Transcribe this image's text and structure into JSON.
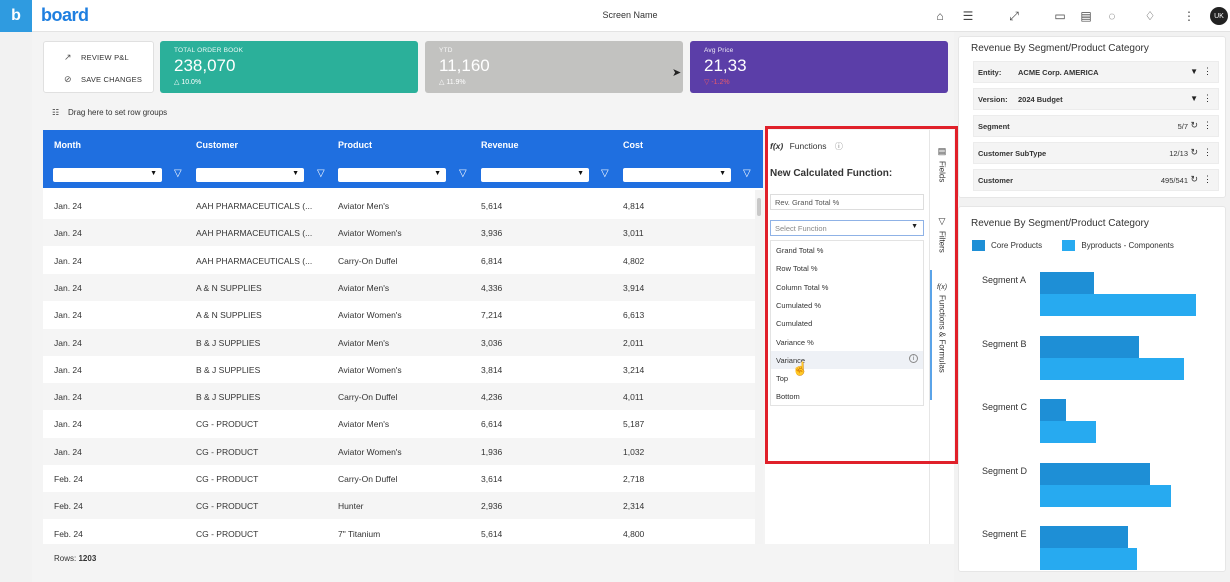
{
  "topbar": {
    "brand_letter": "b",
    "brand_name": "board",
    "screen_name": "Screen Name",
    "avatar": "UK"
  },
  "actions": {
    "review": "REVIEW P&L",
    "save": "SAVE CHANGES"
  },
  "kpis": [
    {
      "label": "TOTAL ORDER BOOK",
      "value": "238,070",
      "variance": "10.0%",
      "color": "#2bb09a"
    },
    {
      "label": "YTD",
      "value": "11,160",
      "variance": "11.9%",
      "color": "#c2c2c0"
    },
    {
      "label": "Avg Price",
      "value": "21,33",
      "variance": "-1.2%",
      "color": "#5b3ea8"
    }
  ],
  "drag_hint": "Drag here to set row groups",
  "grid": {
    "columns": [
      "Month",
      "Customer",
      "Product",
      "Revenue",
      "Cost"
    ],
    "rows": [
      [
        "Jan. 24",
        "AAH PHARMACEUTICALS (...",
        "Aviator Men's",
        "5,614",
        "4,814"
      ],
      [
        "Jan. 24",
        "AAH PHARMACEUTICALS (...",
        "Aviator Women's",
        "3,936",
        "3,011"
      ],
      [
        "Jan. 24",
        "AAH PHARMACEUTICALS (...",
        "Carry-On Duffel",
        "6,814",
        "4,802"
      ],
      [
        "Jan. 24",
        "A & N SUPPLIES",
        "Aviator Men's",
        "4,336",
        "3,914"
      ],
      [
        "Jan. 24",
        "A & N SUPPLIES",
        "Aviator Women's",
        "7,214",
        "6,613"
      ],
      [
        "Jan. 24",
        "B & J SUPPLIES",
        "Aviator Men's",
        "3,036",
        "2,011"
      ],
      [
        "Jan. 24",
        "B & J SUPPLIES",
        "Aviator Women's",
        "3,814",
        "3,214"
      ],
      [
        "Jan. 24",
        "B & J SUPPLIES",
        "Carry-On Duffel",
        "4,236",
        "4,011"
      ],
      [
        "Jan. 24",
        "CG - PRODUCT",
        "Aviator Men's",
        "6,614",
        "5,187"
      ],
      [
        "Jan. 24",
        "CG - PRODUCT",
        "Aviator Women's",
        "1,936",
        "1,032"
      ],
      [
        "Feb. 24",
        "CG - PRODUCT",
        "Carry-On Duffel",
        "3,614",
        "2,718"
      ],
      [
        "Feb. 24",
        "CG - PRODUCT",
        "Hunter",
        "2,936",
        "2,314"
      ],
      [
        "Feb. 24",
        "CG - PRODUCT",
        "7\" Titanium",
        "5,614",
        "4,800"
      ]
    ],
    "rows_label": "Rows:",
    "rows_count": "1203"
  },
  "functions_panel": {
    "header": "Functions",
    "title": "New Calculated Function:",
    "name_value": "Rev. Grand Total %",
    "select_placeholder": "Select Function",
    "options": [
      "Grand Total %",
      "Row Total %",
      "Column Total %",
      "Cumulated %",
      "Cumulated",
      "Variance %",
      "Variance",
      "Top",
      "Bottom"
    ],
    "hovered": "Variance"
  },
  "side_tabs": [
    "Fields",
    "Filters",
    "Functions & Formulas"
  ],
  "selection_panel": {
    "title": "Revenue By Segment/Product Category",
    "rows": [
      {
        "key": "Entity:",
        "value": "ACME Corp. AMERICA"
      },
      {
        "key": "Version:",
        "value": "2024 Budget"
      },
      {
        "key": "Segment",
        "count": "5/7"
      },
      {
        "key": "Customer SubType",
        "count": "12/13"
      },
      {
        "key": "Customer",
        "count": "495/541"
      }
    ]
  },
  "chart_data": {
    "type": "bar",
    "orientation": "horizontal",
    "title": "Revenue By Segment/Product Category",
    "categories": [
      "Segment A",
      "Segment B",
      "Segment C",
      "Segment D",
      "Segment E"
    ],
    "series": [
      {
        "name": "Core Products",
        "values": [
          54,
          99,
          26,
          110,
          88
        ],
        "color": "#1e8fd6"
      },
      {
        "name": "Byproducts - Components",
        "values": [
          156,
          144,
          56,
          131,
          97
        ],
        "color": "#27aaf0"
      }
    ],
    "xlim": [
      0,
      160
    ],
    "legend": "top"
  }
}
